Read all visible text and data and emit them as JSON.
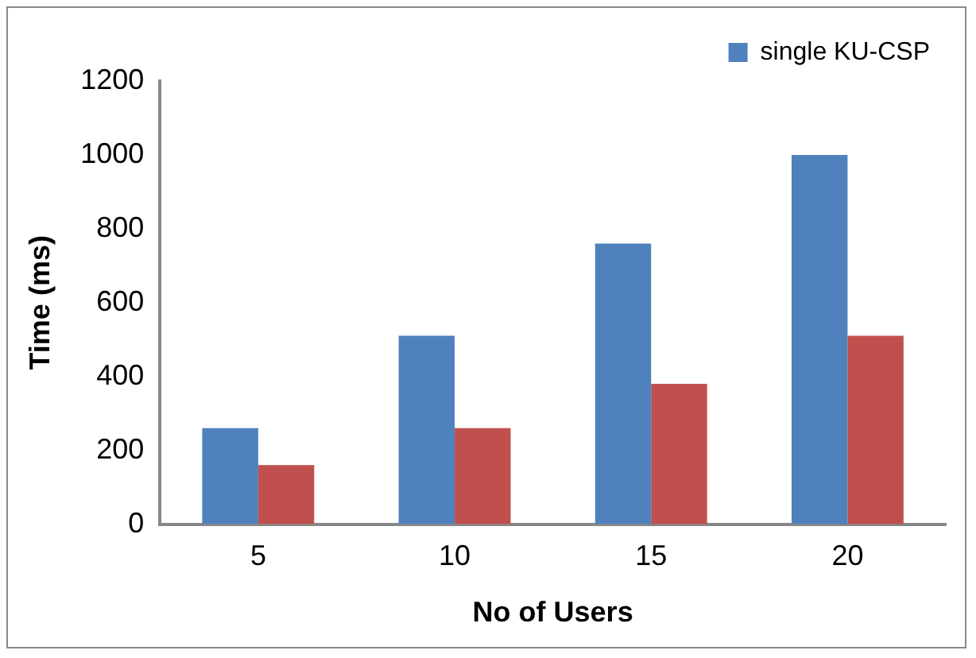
{
  "chart_data": {
    "type": "bar",
    "xlabel": "No of Users",
    "ylabel": "Time (ms)",
    "categories": [
      "5",
      "10",
      "15",
      "20"
    ],
    "series": [
      {
        "name": "single KU-CSP",
        "color": "#4f81bd",
        "values": [
          260,
          510,
          760,
          1000
        ]
      },
      {
        "color": "#c0504d",
        "values": [
          160,
          260,
          380,
          510
        ]
      }
    ],
    "ylim": [
      0,
      1200
    ],
    "yticks": [
      0,
      200,
      400,
      600,
      800,
      1000,
      1200
    ],
    "grid": false,
    "legend": "top right"
  }
}
